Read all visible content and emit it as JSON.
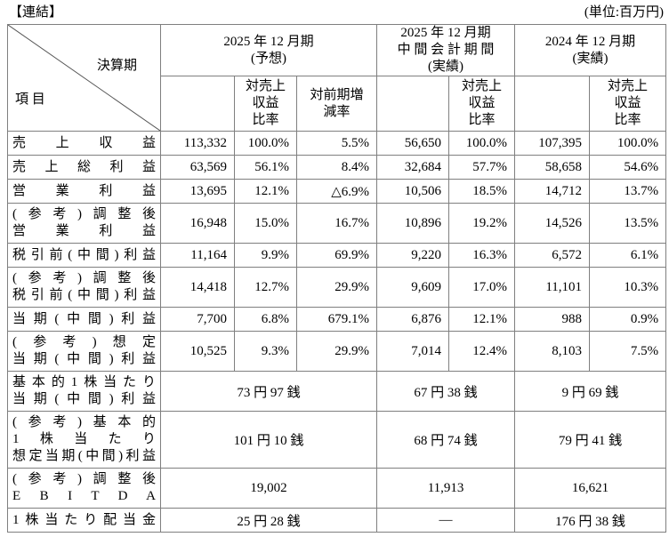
{
  "page": {
    "title": "【連結】",
    "unit_label": "(単位:百万円)"
  },
  "colors": {
    "border": "#7f7f7f",
    "text": "#000000",
    "background": "#ffffff"
  },
  "table": {
    "corner": {
      "top_right": "決算期",
      "bottom_left": "項 目"
    },
    "column_groups": [
      {
        "title": "2025 年 12 月期\n(予想)",
        "sub_columns": [
          "",
          "対売上\n収益\n比率",
          "対前期増\n減率"
        ]
      },
      {
        "title": "2025 年 12 月期\n中 間 会 計 期 間\n(実績)",
        "sub_columns": [
          "",
          "対売上\n収益\n比率"
        ]
      },
      {
        "title": "2024 年 12 月期\n(実績)",
        "sub_columns": [
          "",
          "対売上\n収益\n比率"
        ]
      }
    ],
    "rows": [
      {
        "label_lines": [
          "売上収益"
        ],
        "merged": false,
        "cells": [
          "113,332",
          "100.0%",
          "5.5%",
          "56,650",
          "100.0%",
          "107,395",
          "100.0%"
        ]
      },
      {
        "label_lines": [
          "売上総利益"
        ],
        "merged": false,
        "cells": [
          "63,569",
          "56.1%",
          "8.4%",
          "32,684",
          "57.7%",
          "58,658",
          "54.6%"
        ]
      },
      {
        "label_lines": [
          "営業利益"
        ],
        "merged": false,
        "cells": [
          "13,695",
          "12.1%",
          "△6.9%",
          "10,506",
          "18.5%",
          "14,712",
          "13.7%"
        ]
      },
      {
        "label_lines": [
          "(参考)調整後",
          "営業利益"
        ],
        "merged": false,
        "cells": [
          "16,948",
          "15.0%",
          "16.7%",
          "10,896",
          "19.2%",
          "14,526",
          "13.5%"
        ]
      },
      {
        "label_lines": [
          "税引前(中間)利益"
        ],
        "merged": false,
        "cells": [
          "11,164",
          "9.9%",
          "69.9%",
          "9,220",
          "16.3%",
          "6,572",
          "6.1%"
        ]
      },
      {
        "label_lines": [
          "(参考)調整後",
          "税引前(中間)利益"
        ],
        "merged": false,
        "cells": [
          "14,418",
          "12.7%",
          "29.9%",
          "9,609",
          "17.0%",
          "11,101",
          "10.3%"
        ]
      },
      {
        "label_lines": [
          "当期(中間)利益"
        ],
        "merged": false,
        "cells": [
          "7,700",
          "6.8%",
          "679.1%",
          "6,876",
          "12.1%",
          "988",
          "0.9%"
        ]
      },
      {
        "label_lines": [
          "(参考)想定",
          "当期(中間)利益"
        ],
        "merged": false,
        "cells": [
          "10,525",
          "9.3%",
          "29.9%",
          "7,014",
          "12.4%",
          "8,103",
          "7.5%"
        ]
      },
      {
        "label_lines": [
          "基本的1株当たり",
          "当期(中間)利益"
        ],
        "merged": true,
        "cells": [
          "73 円 97 銭",
          "67 円 38 銭",
          "9 円 69 銭"
        ]
      },
      {
        "label_lines": [
          "(参考)基本的",
          "1株当たり",
          "想定当期(中間)利益"
        ],
        "merged": true,
        "cells": [
          "101 円 10 銭",
          "68 円 74 銭",
          "79 円 41 銭"
        ]
      },
      {
        "label_lines": [
          "(参考)調整後",
          "E B I T D A"
        ],
        "merged": true,
        "cells": [
          "19,002",
          "11,913",
          "16,621"
        ]
      },
      {
        "label_lines": [
          "1株当たり配当金"
        ],
        "merged": true,
        "cells": [
          "25 円 28 銭",
          "―",
          "176 円 38 銭"
        ]
      }
    ]
  }
}
